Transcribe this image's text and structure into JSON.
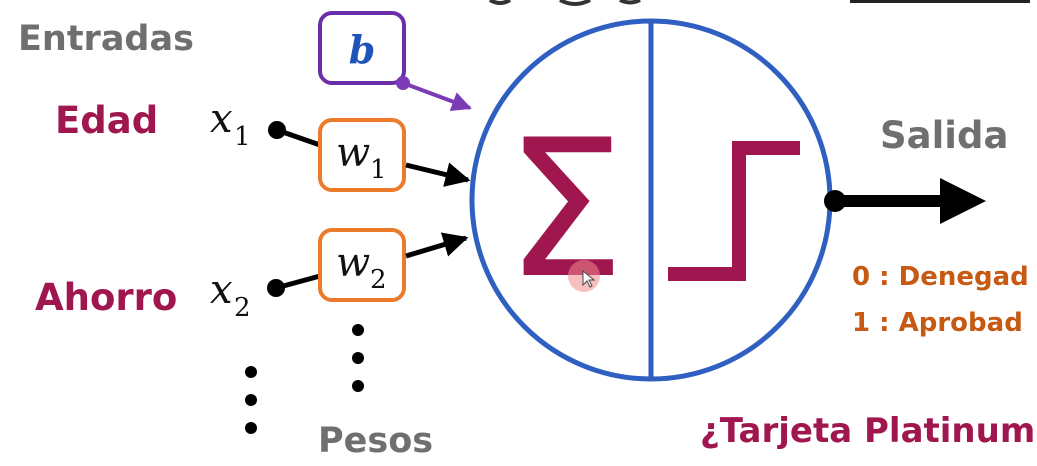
{
  "labels": {
    "entradas": "Entradas",
    "pesos": "Pesos",
    "salida": "Salida",
    "question": "¿Tarjeta Platinum"
  },
  "inputs": [
    {
      "name": "Edad",
      "symbol": "x",
      "subscript": "1"
    },
    {
      "name": "Ahorro",
      "symbol": "x",
      "subscript": "2"
    }
  ],
  "weights": [
    {
      "symbol": "w",
      "subscript": "1"
    },
    {
      "symbol": "w",
      "subscript": "2"
    }
  ],
  "bias": {
    "symbol": "b"
  },
  "neuron": {
    "sum_symbol": "Σ",
    "activation": "step"
  },
  "outputs": [
    {
      "value": "0",
      "separator": ":",
      "text": "Denegad"
    },
    {
      "value": "1",
      "separator": ":",
      "text": "Aprobad"
    }
  ],
  "colors": {
    "circle": "#2f5fc0",
    "sum_and_step": "#a0174f",
    "weight_border": "#ec7a2b",
    "bias_border": "#6a2fa8",
    "bias_letter": "#1f55b8",
    "bias_arrow": "#7a3bb5",
    "output_text": "#c65a12",
    "label_gray": "#6f6f6f"
  }
}
